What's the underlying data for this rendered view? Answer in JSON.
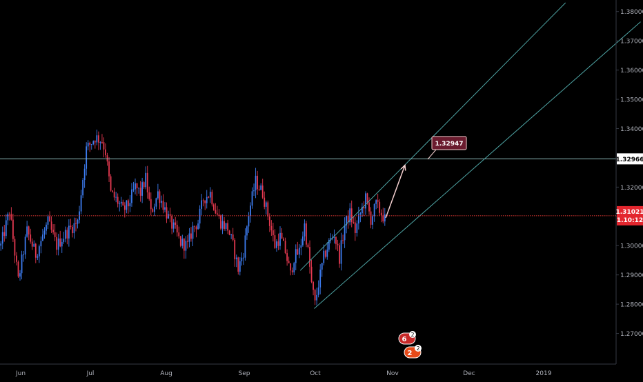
{
  "chart_data": {
    "type": "candlestick",
    "x_axis": {
      "tick_labels": [
        "Jun",
        "Jul",
        "Aug",
        "Sep",
        "Oct",
        "Nov",
        "Dec",
        "2019"
      ]
    },
    "y_axis": {
      "tick_labels": [
        "1.27000",
        "1.28000",
        "1.29000",
        "1.30000",
        "1.31000",
        "1.32000",
        "1.33000",
        "1.34000",
        "1.35000",
        "1.36000",
        "1.37000",
        "1.38000"
      ],
      "range": [
        1.26,
        1.383
      ]
    },
    "price_anchors": [
      [
        0,
        1.3
      ],
      [
        5,
        1.312
      ],
      [
        10,
        1.288
      ],
      [
        15,
        1.305
      ],
      [
        20,
        1.297
      ],
      [
        27,
        1.308
      ],
      [
        32,
        1.3
      ],
      [
        37,
        1.304
      ],
      [
        40,
        1.306
      ],
      [
        44,
        1.308
      ],
      [
        49,
        1.333
      ],
      [
        54,
        1.337
      ],
      [
        58,
        1.336
      ],
      [
        60,
        1.332
      ],
      [
        63,
        1.318
      ],
      [
        67,
        1.315
      ],
      [
        70,
        1.312
      ],
      [
        73,
        1.314
      ],
      [
        77,
        1.32
      ],
      [
        80,
        1.318
      ],
      [
        83,
        1.323
      ],
      [
        86,
        1.311
      ],
      [
        90,
        1.318
      ],
      [
        93,
        1.314
      ],
      [
        97,
        1.308
      ],
      [
        100,
        1.305
      ],
      [
        103,
        1.301
      ],
      [
        107,
        1.3
      ],
      [
        110,
        1.306
      ],
      [
        113,
        1.308
      ],
      [
        116,
        1.316
      ],
      [
        120,
        1.318
      ],
      [
        123,
        1.312
      ],
      [
        126,
        1.308
      ],
      [
        130,
        1.306
      ],
      [
        133,
        1.3
      ],
      [
        136,
        1.292
      ],
      [
        139,
        1.298
      ],
      [
        142,
        1.311
      ],
      [
        146,
        1.322
      ],
      [
        150,
        1.318
      ],
      [
        154,
        1.308
      ],
      [
        157,
        1.3
      ],
      [
        160,
        1.303
      ],
      [
        163,
        1.298
      ],
      [
        166,
        1.29
      ],
      [
        168,
        1.296
      ],
      [
        171,
        1.298
      ],
      [
        174,
        1.307
      ],
      [
        176,
        1.298
      ],
      [
        178,
        1.287
      ],
      [
        180,
        1.28
      ],
      [
        182,
        1.287
      ],
      [
        185,
        1.296
      ],
      [
        188,
        1.301
      ],
      [
        191,
        1.304
      ],
      [
        194,
        1.296
      ],
      [
        197,
        1.307
      ],
      [
        200,
        1.311
      ],
      [
        203,
        1.305
      ],
      [
        206,
        1.311
      ],
      [
        209,
        1.316
      ],
      [
        212,
        1.309
      ],
      [
        215,
        1.314
      ],
      [
        218,
        1.311
      ],
      [
        220,
        1.309
      ]
    ],
    "horizontal_lines": [
      {
        "price": 1.32966,
        "label": "1.32966",
        "style": "solid",
        "color": "#8fbcbb"
      },
      {
        "price": 1.31021,
        "label": "1.31021",
        "style": "dotted",
        "color": "#e53935"
      }
    ],
    "trend_channel": {
      "lower": {
        "from": [
          180,
          1.2785
        ],
        "to": [
          367,
          1.3765
        ]
      },
      "upper": {
        "from": [
          172,
          1.2915
        ],
        "to": [
          324,
          1.383
        ]
      },
      "color": "#4ea4a4"
    },
    "projection_arrow": {
      "from": [
        221,
        1.3095
      ],
      "to": [
        232,
        1.3275
      ],
      "color": "#f5d0d0"
    },
    "target_label": "1.32947",
    "current_price": "1.31021",
    "countdown_label": "1.10:12",
    "event_badges": [
      {
        "top": "6",
        "count": "2"
      },
      {
        "top": "2",
        "count": "2"
      }
    ],
    "colors": {
      "up": "#3d7cf0",
      "down": "#e53950",
      "axis_text": "#b2b5be",
      "axis_line": "#363a45"
    }
  }
}
